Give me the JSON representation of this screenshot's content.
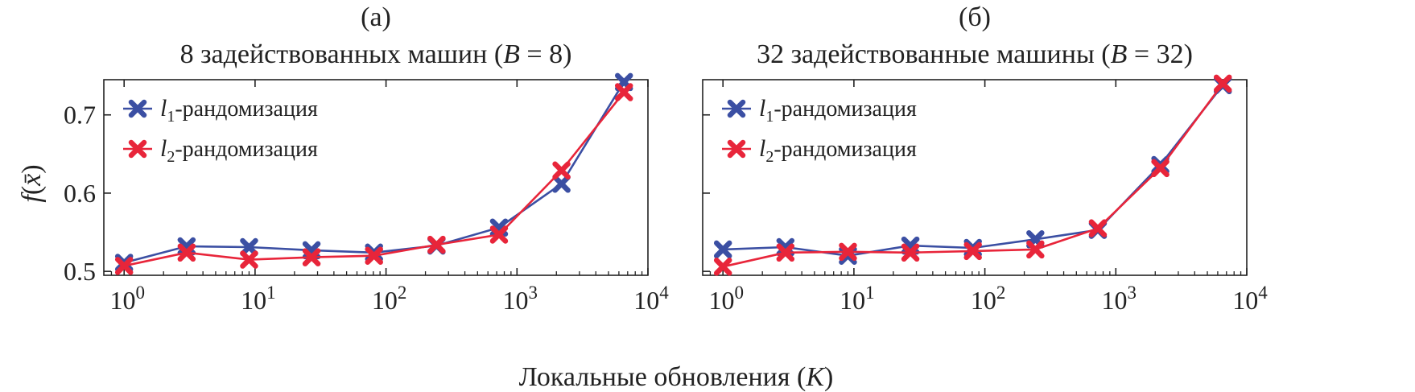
{
  "chart_data": [
    {
      "type": "line",
      "panel_label": "(а)",
      "title": "8 задействованных машин (B = 8)",
      "title_prefix": "8 задействованных машин (",
      "title_var": "B",
      "title_suffix": " = 8)",
      "xscale": "log",
      "xlim": [
        0.7,
        10000
      ],
      "ylim": [
        0.495,
        0.745
      ],
      "x": [
        1,
        3,
        9,
        27,
        81,
        243,
        729,
        2187,
        6561
      ],
      "series": [
        {
          "name": "l1-рандомизация",
          "legend_var": "l",
          "legend_sub": "1",
          "legend_text": "-рандомизация",
          "color": "#3b4fa3",
          "values": [
            0.511,
            0.532,
            0.531,
            0.527,
            0.524,
            0.533,
            0.556,
            0.612,
            0.742
          ]
        },
        {
          "name": "l2-рандомизация",
          "legend_var": "l",
          "legend_sub": "2",
          "legend_text": "-рандомизация",
          "color": "#e8253a",
          "values": [
            0.507,
            0.524,
            0.515,
            0.518,
            0.52,
            0.534,
            0.547,
            0.629,
            0.729
          ]
        }
      ],
      "legend_position": "top-left"
    },
    {
      "type": "line",
      "panel_label": "(б)",
      "title": "32 задействованные машины (B = 32)",
      "title_prefix": "32 задействованные машины (",
      "title_var": "B",
      "title_suffix": " = 32)",
      "xscale": "log",
      "xlim": [
        0.7,
        10000
      ],
      "ylim": [
        0.495,
        0.745
      ],
      "x": [
        1,
        3,
        9,
        27,
        81,
        243,
        729,
        2187,
        6561
      ],
      "series": [
        {
          "name": "l1-рандомизация",
          "legend_var": "l",
          "legend_sub": "1",
          "legend_text": "-рандомизация",
          "color": "#3b4fa3",
          "values": [
            0.528,
            0.531,
            0.52,
            0.533,
            0.53,
            0.541,
            0.553,
            0.636,
            0.738
          ]
        },
        {
          "name": "l2-рандомизация",
          "legend_var": "l",
          "legend_sub": "2",
          "legend_text": "-рандомизация",
          "color": "#e8253a",
          "values": [
            0.506,
            0.524,
            0.525,
            0.524,
            0.526,
            0.528,
            0.555,
            0.632,
            0.74
          ]
        }
      ],
      "legend_position": "top-left"
    }
  ],
  "axes": {
    "xlabel": "Локальные обновления (K)",
    "xlabel_prefix": "Локальные обновления (",
    "xlabel_var": "K",
    "xlabel_suffix": ")",
    "ylabel": "f(x̄)",
    "ylabel_f": "f",
    "ylabel_open": "(",
    "ylabel_x": "x̄",
    "ylabel_close": ")",
    "yticks": [
      "0.5",
      "0.6",
      "0.7"
    ],
    "ytick_values": [
      0.5,
      0.6,
      0.7
    ],
    "xtick_base": "10",
    "xtick_exponents": [
      "0",
      "1",
      "2",
      "3",
      "4"
    ]
  }
}
